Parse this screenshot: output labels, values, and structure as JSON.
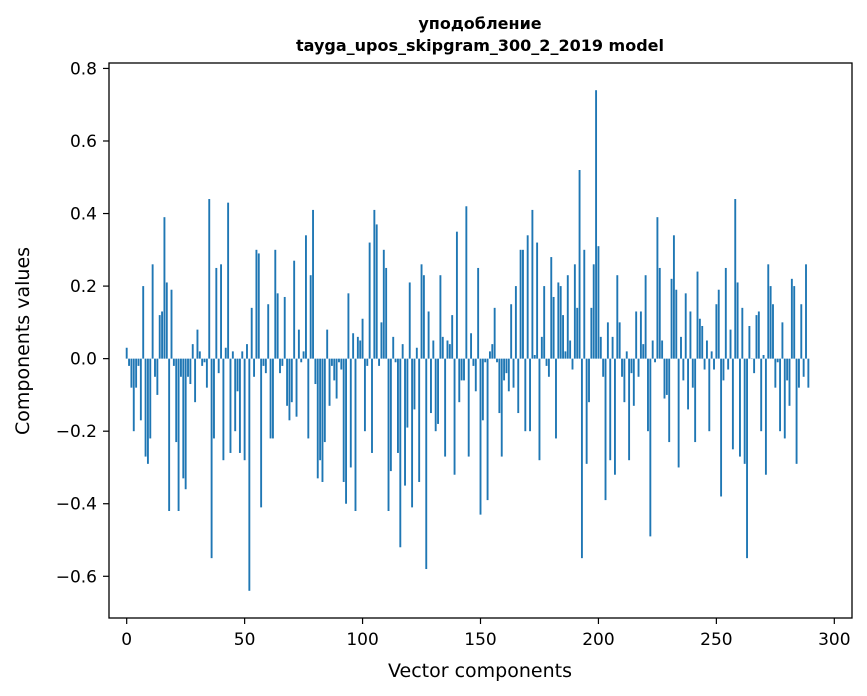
{
  "chart_data": {
    "type": "bar",
    "title": "уподобление",
    "subtitle": "tayga_upos_skipgram_300_2_2019 model",
    "xlabel": "Vector components",
    "ylabel": "Components values",
    "xlim": [
      -7.5,
      307.5
    ],
    "ylim": [
      -0.715,
      0.815
    ],
    "xticks": [
      0,
      50,
      100,
      150,
      200,
      250,
      300
    ],
    "xtick_labels": [
      "0",
      "50",
      "100",
      "150",
      "200",
      "250",
      "300"
    ],
    "yticks": [
      -0.6,
      -0.4,
      -0.2,
      0.0,
      0.2,
      0.4,
      0.6,
      0.8
    ],
    "ytick_labels": [
      "−0.6",
      "−0.4",
      "−0.2",
      "0.0",
      "0.2",
      "0.4",
      "0.6",
      "0.8"
    ],
    "bar_color": "#1f77b4",
    "x_start": 0,
    "values": [
      0.03,
      -0.02,
      -0.08,
      -0.2,
      -0.08,
      -0.02,
      -0.17,
      0.2,
      -0.27,
      -0.29,
      -0.22,
      0.26,
      -0.05,
      -0.1,
      0.12,
      0.13,
      0.39,
      0.21,
      -0.42,
      0.19,
      -0.02,
      -0.23,
      -0.42,
      -0.05,
      -0.33,
      -0.36,
      -0.05,
      -0.07,
      0.04,
      -0.12,
      0.08,
      0.02,
      -0.02,
      -0.01,
      -0.08,
      0.44,
      -0.55,
      -0.22,
      0.25,
      -0.04,
      0.26,
      -0.28,
      0.03,
      0.43,
      -0.26,
      0.02,
      -0.2,
      -0.09,
      -0.26,
      0.02,
      -0.28,
      0.04,
      -0.64,
      0.14,
      -0.05,
      0.3,
      0.29,
      -0.41,
      -0.02,
      -0.04,
      0.15,
      -0.22,
      -0.22,
      0.3,
      0.18,
      -0.04,
      -0.02,
      0.17,
      -0.13,
      -0.17,
      -0.12,
      0.27,
      -0.16,
      0.08,
      -0.01,
      0.02,
      0.34,
      -0.22,
      0.23,
      0.41,
      -0.07,
      -0.33,
      -0.28,
      -0.34,
      -0.23,
      0.08,
      -0.13,
      -0.02,
      -0.06,
      -0.11,
      -0.01,
      -0.03,
      -0.34,
      -0.4,
      0.18,
      -0.3,
      0.07,
      -0.42,
      0.06,
      0.05,
      0.11,
      -0.2,
      -0.02,
      0.32,
      -0.26,
      0.41,
      0.37,
      -0.02,
      0.1,
      0.3,
      0.25,
      -0.42,
      -0.31,
      0.06,
      -0.01,
      -0.26,
      -0.52,
      0.04,
      -0.35,
      -0.19,
      0.21,
      -0.41,
      -0.14,
      0.03,
      -0.34,
      0.26,
      0.23,
      -0.58,
      0.13,
      -0.15,
      0.05,
      -0.2,
      -0.18,
      0.23,
      0.06,
      -0.27,
      0.05,
      0.04,
      0.12,
      -0.32,
      0.35,
      -0.12,
      -0.06,
      -0.06,
      0.42,
      -0.27,
      0.07,
      -0.02,
      -0.09,
      0.25,
      -0.43,
      -0.17,
      -0.01,
      -0.39,
      0.02,
      0.04,
      0.14,
      -0.01,
      -0.15,
      -0.27,
      -0.06,
      -0.04,
      -0.09,
      0.15,
      -0.08,
      0.2,
      -0.15,
      0.3,
      0.3,
      -0.2,
      0.34,
      -0.2,
      0.41,
      0.01,
      0.32,
      -0.28,
      0.06,
      0.2,
      -0.02,
      -0.05,
      0.28,
      0.17,
      -0.22,
      0.21,
      0.2,
      0.12,
      0.02,
      0.23,
      0.05,
      -0.03,
      0.26,
      0.14,
      0.52,
      -0.55,
      0.3,
      -0.29,
      -0.12,
      0.14,
      0.26,
      0.74,
      0.31,
      0.06,
      -0.05,
      -0.39,
      0.1,
      -0.28,
      0.06,
      -0.32,
      0.23,
      0.1,
      -0.05,
      -0.12,
      0.02,
      -0.28,
      -0.04,
      -0.13,
      0.13,
      -0.05,
      0.13,
      0.04,
      0.23,
      -0.2,
      -0.49,
      0.05,
      -0.01,
      0.39,
      0.25,
      0.05,
      -0.11,
      -0.1,
      -0.23,
      0.22,
      0.34,
      0.19,
      -0.3,
      0.06,
      -0.06,
      0.18,
      -0.14,
      0.13,
      -0.08,
      -0.23,
      0.24,
      0.11,
      0.09,
      -0.03,
      0.05,
      -0.2,
      0.02,
      -0.03,
      0.15,
      0.19,
      -0.38,
      -0.06,
      0.25,
      -0.03,
      0.08,
      -0.25,
      0.44,
      0.21,
      -0.27,
      0.14,
      -0.29,
      -0.55,
      0.09,
      0.0,
      -0.04,
      0.12,
      0.13,
      -0.2,
      0.01,
      -0.32,
      0.26,
      0.2,
      0.15,
      -0.08,
      -0.01,
      -0.2,
      0.1,
      -0.22,
      -0.06,
      -0.13,
      0.22,
      0.2,
      -0.29,
      -0.08,
      0.15,
      -0.05,
      0.26,
      -0.08
    ]
  }
}
